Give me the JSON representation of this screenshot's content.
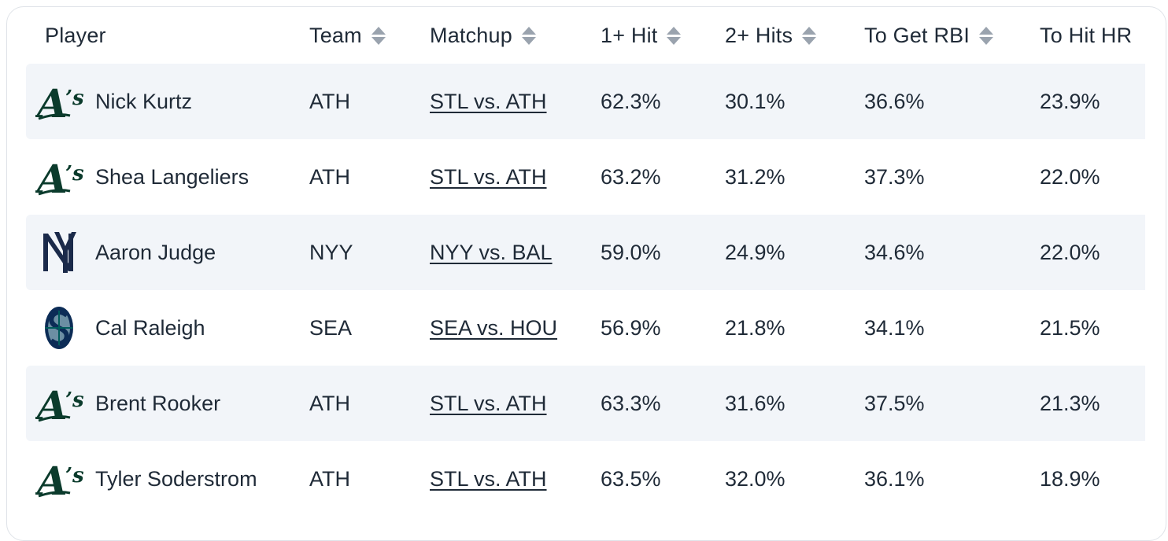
{
  "headers": {
    "player": "Player",
    "team": "Team",
    "matchup": "Matchup",
    "one_hit": "1+ Hit",
    "two_hits": "2+ Hits",
    "rbi": "To Get RBI",
    "hr": "To Hit HR"
  },
  "rows": [
    {
      "logo": "athletics-logo",
      "player": "Nick Kurtz",
      "team": "ATH",
      "matchup": "STL vs. ATH",
      "one_hit": "62.3%",
      "two_hits": "30.1%",
      "rbi": "36.6%",
      "hr": "23.9%"
    },
    {
      "logo": "athletics-logo",
      "player": "Shea Langeliers",
      "team": "ATH",
      "matchup": "STL vs. ATH",
      "one_hit": "63.2%",
      "two_hits": "31.2%",
      "rbi": "37.3%",
      "hr": "22.0%"
    },
    {
      "logo": "yankees-logo",
      "player": "Aaron Judge",
      "team": "NYY",
      "matchup": "NYY vs. BAL",
      "one_hit": "59.0%",
      "two_hits": "24.9%",
      "rbi": "34.6%",
      "hr": "22.0%"
    },
    {
      "logo": "mariners-logo",
      "player": "Cal Raleigh",
      "team": "SEA",
      "matchup": "SEA vs. HOU",
      "one_hit": "56.9%",
      "two_hits": "21.8%",
      "rbi": "34.1%",
      "hr": "21.5%"
    },
    {
      "logo": "athletics-logo",
      "player": "Brent Rooker",
      "team": "ATH",
      "matchup": "STL vs. ATH",
      "one_hit": "63.3%",
      "two_hits": "31.6%",
      "rbi": "37.5%",
      "hr": "21.3%"
    },
    {
      "logo": "athletics-logo",
      "player": "Tyler Soderstrom",
      "team": "ATH",
      "matchup": "STL vs. ATH",
      "one_hit": "63.5%",
      "two_hits": "32.0%",
      "rbi": "36.1%",
      "hr": "18.9%"
    }
  ],
  "colors": {
    "text": "#1f2a37",
    "row_alt": "#f2f5f9",
    "sort_icon": "#9aa3ae",
    "athletics_green": "#0b3b2c",
    "yankees_navy": "#1b2a4a",
    "mariners_navy": "#0c2c56",
    "mariners_teal": "#005c5c"
  }
}
